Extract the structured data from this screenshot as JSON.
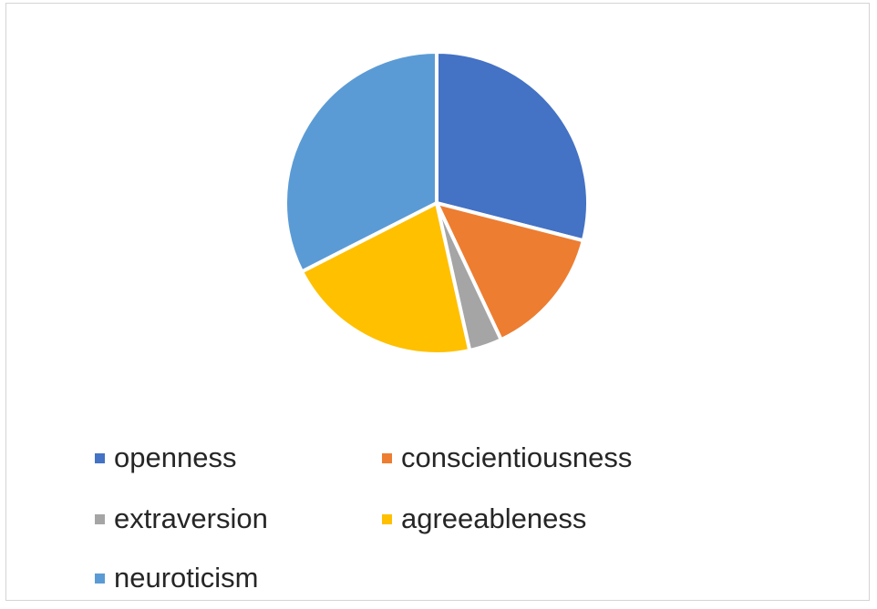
{
  "chart_data": {
    "type": "pie",
    "title": "",
    "categories": [
      "openness",
      "conscientiousness",
      "extraversion",
      "agreeableness",
      "neuroticism"
    ],
    "values": [
      29,
      14,
      3.5,
      21,
      32.5
    ],
    "unit": "",
    "colors": [
      "#4472C4",
      "#ED7D31",
      "#A5A5A5",
      "#FFC000",
      "#5B9BD5"
    ],
    "start_angle_deg": 0,
    "direction": "clockwise",
    "legend_position": "bottom",
    "legend": [
      {
        "label": "openness",
        "color": "#4472C4"
      },
      {
        "label": "conscientiousness",
        "color": "#ED7D31"
      },
      {
        "label": "extraversion",
        "color": "#A5A5A5"
      },
      {
        "label": "agreeableness",
        "color": "#FFC000"
      },
      {
        "label": "neuroticism",
        "color": "#5B9BD5"
      }
    ]
  }
}
